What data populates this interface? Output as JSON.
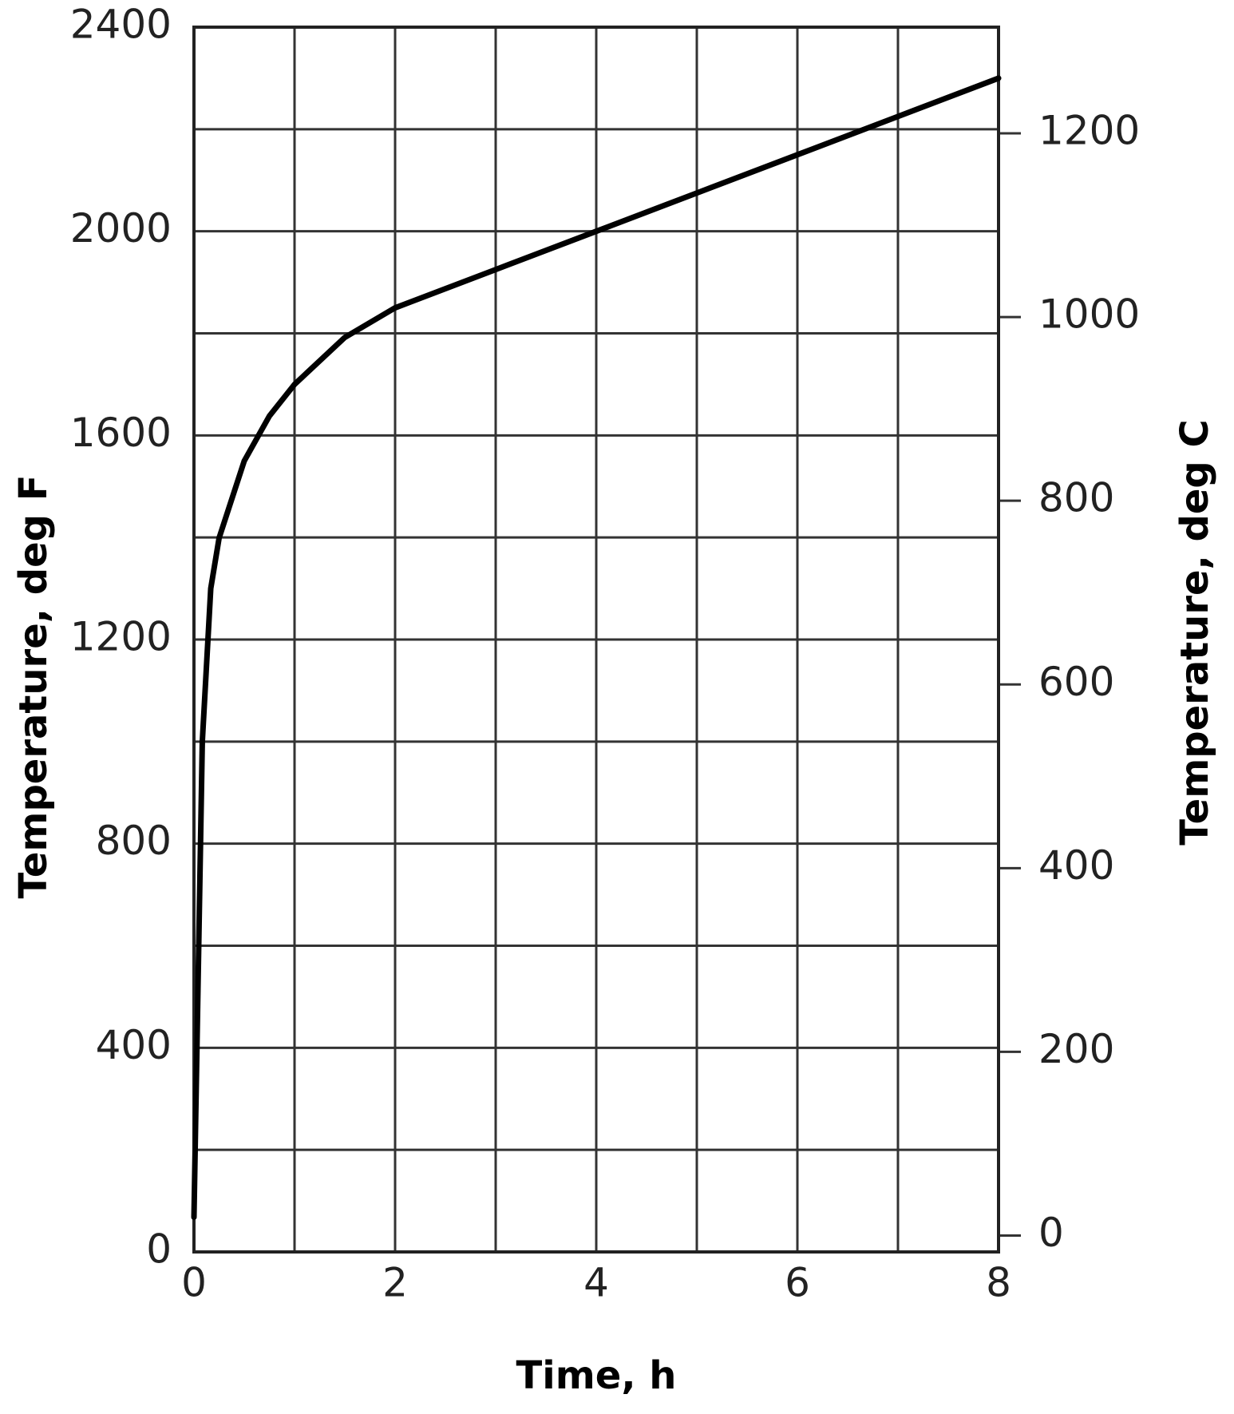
{
  "chart_data": {
    "type": "line",
    "x_label": "Time, h",
    "y_label": "Temperature, deg F",
    "y2_label": "Temperature, deg C",
    "xlim": [
      0,
      8
    ],
    "xticks": [
      0,
      2,
      4,
      6,
      8
    ],
    "x_minor_ticks": [
      1,
      3,
      5,
      7
    ],
    "ylim": [
      0,
      2400
    ],
    "yticks": [
      0,
      400,
      800,
      1200,
      1600,
      2000,
      2400
    ],
    "y_minor_ticks": [
      200,
      600,
      1000,
      1400,
      1800,
      2200
    ],
    "y2lim": [
      -17.8,
      1315.6
    ],
    "y2ticks": [
      0,
      200,
      400,
      600,
      800,
      1000,
      1200
    ],
    "grid": true,
    "series": [
      {
        "color": "#000000",
        "x": [
          0,
          0.083,
          0.167,
          0.25,
          0.5,
          0.75,
          1,
          1.5,
          2,
          3,
          4,
          5,
          6,
          7,
          8
        ],
        "values": [
          68,
          1000,
          1300,
          1399,
          1550,
          1638,
          1700,
          1792,
          1850,
          1925,
          2000,
          2075,
          2150,
          2225,
          2300
        ]
      }
    ]
  }
}
